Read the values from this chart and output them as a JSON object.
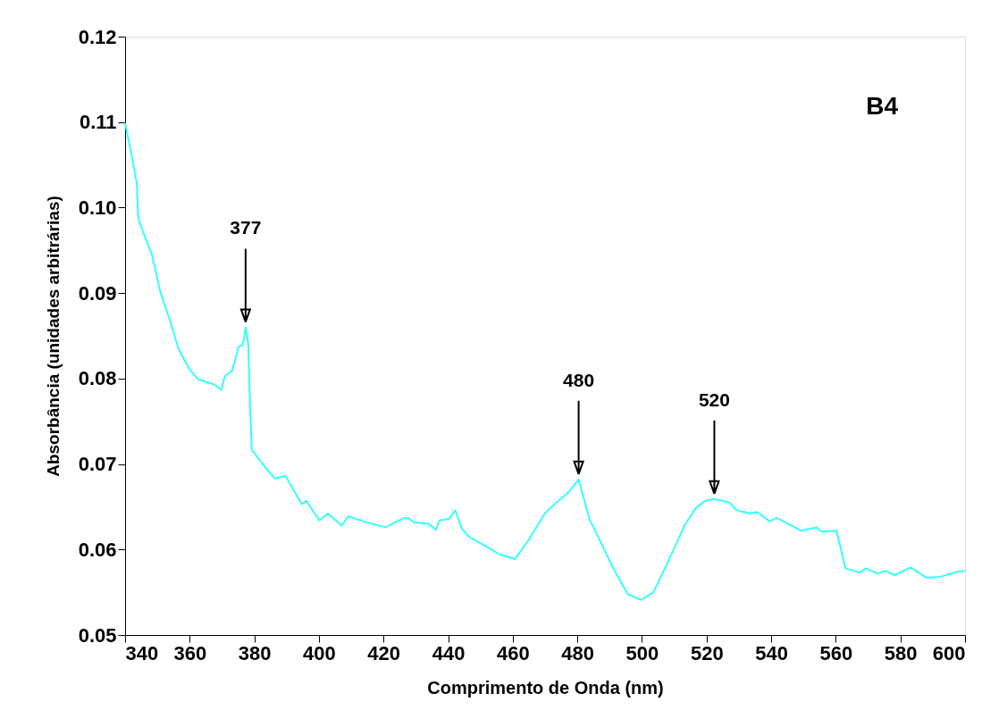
{
  "chart_data": {
    "type": "line",
    "xlabel": "Comprimento de Onda (nm)",
    "ylabel": "Absorbância (unidades arbitrárias)",
    "x": [
      340,
      342,
      343.6,
      344.1,
      346.1,
      348.3,
      351,
      353.8,
      356.6,
      359.9,
      362.7,
      367.6,
      369.8,
      370.9,
      373.2,
      375.1,
      376.5,
      377.3,
      378.1,
      378.7,
      379.2,
      383.4,
      386.4,
      389.7,
      394.7,
      396.1,
      400.2,
      402.7,
      407.1,
      409.1,
      414.6,
      420.7,
      425.7,
      427.6,
      429.3,
      434,
      436.2,
      437.3,
      440.3,
      442.2,
      444.2,
      446.4,
      452.5,
      456.1,
      460.7,
      464.9,
      469.9,
      473.5,
      477.3,
      480.4,
      483.7,
      487.3,
      491.4,
      495.6,
      499.7,
      503.6,
      508.6,
      513.3,
      516.8,
      519.6,
      522.4,
      527.1,
      529.3,
      533.4,
      535.6,
      539.5,
      541.7,
      545.9,
      549.2,
      554.1,
      555.5,
      560.2,
      563,
      567.4,
      569.3,
      572.9,
      575.4,
      578.2,
      583.2,
      588.1,
      592.3,
      597.5,
      600
    ],
    "series": [
      {
        "color": "#33ffff",
        "values": [
          0.1099,
          0.1062,
          0.1029,
          0.0987,
          0.0966,
          0.0945,
          0.09,
          0.0869,
          0.0834,
          0.0811,
          0.0799,
          0.0793,
          0.0787,
          0.0803,
          0.0809,
          0.0837,
          0.084,
          0.086,
          0.0841,
          0.0767,
          0.0717,
          0.0696,
          0.0683,
          0.0686,
          0.0653,
          0.0657,
          0.0634,
          0.0642,
          0.0628,
          0.0639,
          0.0632,
          0.0626,
          0.0636,
          0.0637,
          0.0632,
          0.063,
          0.0623,
          0.0634,
          0.0636,
          0.0646,
          0.0625,
          0.0615,
          0.0602,
          0.0594,
          0.0589,
          0.0611,
          0.0642,
          0.0655,
          0.0667,
          0.0682,
          0.0636,
          0.0608,
          0.0576,
          0.0548,
          0.0541,
          0.055,
          0.059,
          0.0629,
          0.0649,
          0.0657,
          0.0659,
          0.0655,
          0.0646,
          0.0642,
          0.0644,
          0.0633,
          0.0637,
          0.0629,
          0.0622,
          0.0626,
          0.0621,
          0.0622,
          0.0578,
          0.0573,
          0.0578,
          0.0572,
          0.0575,
          0.057,
          0.0579,
          0.0567,
          0.0568,
          0.0574,
          0.0575
        ]
      }
    ],
    "xlim": [
      340,
      600
    ],
    "xticks": [
      340,
      360,
      380,
      400,
      420,
      440,
      460,
      480,
      500,
      520,
      540,
      560,
      580,
      600
    ],
    "ylim": [
      0.05,
      0.12
    ],
    "yticks": [
      {
        "value": 0.05,
        "label": "0.05"
      },
      {
        "value": 0.06,
        "label": "0.06"
      },
      {
        "value": 0.07,
        "label": "0.07"
      },
      {
        "value": 0.08,
        "label": "0.08"
      },
      {
        "value": 0.09,
        "label": "0.09"
      },
      {
        "value": 0.1,
        "label": "0.10"
      },
      {
        "value": 0.11,
        "label": "0.11"
      },
      {
        "value": 0.12,
        "label": "0.12"
      }
    ],
    "annotations": [
      {
        "text": "377",
        "x": 377.3,
        "y": 0.086
      },
      {
        "text": "480",
        "x": 480.4,
        "y": 0.0682
      },
      {
        "text": "520",
        "x": 522.4,
        "y": 0.0659
      },
      "B4"
    ],
    "grid": false,
    "marker": "none",
    "line_style": "solid"
  }
}
